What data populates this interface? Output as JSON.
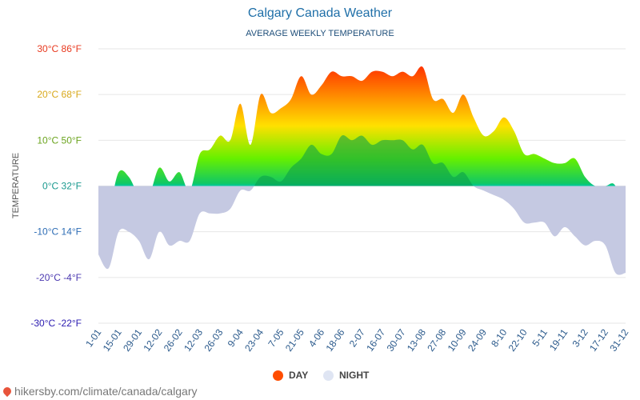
{
  "header": {
    "title": "Calgary Canada Weather",
    "subtitle": "AVERAGE WEEKLY TEMPERATURE"
  },
  "legend": {
    "day": "DAY",
    "night": "NIGHT"
  },
  "footer": {
    "source": "hikersby.com/climate/canada/calgary"
  },
  "colors": {
    "day_legend": "#ff4d00",
    "night_legend": "#dfe5f3",
    "title": "#1f6fa8"
  },
  "chart_data": {
    "type": "area",
    "title": "Calgary Canada Weather",
    "subtitle": "AVERAGE WEEKLY TEMPERATURE",
    "ylabel": "TEMPERATURE",
    "ylim": [
      -30,
      30
    ],
    "y_ticks": [
      {
        "value": 30,
        "label": "30°C 86°F",
        "color": "#e8391f"
      },
      {
        "value": 20,
        "label": "20°C 68°F",
        "color": "#d8a81a"
      },
      {
        "value": 10,
        "label": "10°C 50°F",
        "color": "#6ba41e"
      },
      {
        "value": 0,
        "label": "0°C 32°F",
        "color": "#19998e"
      },
      {
        "value": -10,
        "label": "-10°C 14°F",
        "color": "#2e6db5"
      },
      {
        "value": -20,
        "label": "-20°C -4°F",
        "color": "#4b39b0"
      },
      {
        "value": -30,
        "label": "-30°C -22°F",
        "color": "#2a1ab0"
      }
    ],
    "x_tick_labels": [
      "1-01",
      "15-01",
      "29-01",
      "12-02",
      "26-02",
      "12-03",
      "26-03",
      "9-04",
      "23-04",
      "7-05",
      "21-05",
      "4-06",
      "18-06",
      "2-07",
      "16-07",
      "30-07",
      "13-08",
      "27-08",
      "10-09",
      "24-09",
      "8-10",
      "22-10",
      "5-11",
      "19-11",
      "3-12",
      "17-12",
      "31-12"
    ],
    "weeks": 53,
    "grid": true,
    "legend_position": "bottom",
    "series": [
      {
        "name": "DAY",
        "values": [
          -3,
          -5,
          3,
          2,
          -2,
          -2,
          4,
          1,
          3,
          -1,
          7,
          8,
          11,
          10,
          18,
          9,
          20,
          16,
          17,
          19,
          24,
          20,
          22,
          25,
          24,
          24,
          23,
          25,
          25,
          24,
          25,
          24,
          26,
          19,
          19,
          16,
          20,
          15,
          11,
          12,
          15,
          12,
          7,
          7,
          6,
          5,
          5,
          6,
          2,
          0,
          0,
          0,
          -8
        ]
      },
      {
        "name": "NIGHT",
        "values": [
          -15,
          -18,
          -10,
          -10,
          -12,
          -16,
          -10,
          -13,
          -12,
          -12,
          -6,
          -6,
          -6,
          -5,
          -1,
          -1,
          2,
          2,
          1,
          4,
          6,
          9,
          7,
          7,
          11,
          10,
          11,
          9,
          10,
          10,
          10,
          8,
          9,
          5,
          5,
          2,
          3,
          0,
          -1,
          -2,
          -3,
          -5,
          -8,
          -8,
          -8,
          -11,
          -9,
          -11,
          -13,
          -12,
          -13,
          -19,
          -19
        ]
      }
    ]
  }
}
